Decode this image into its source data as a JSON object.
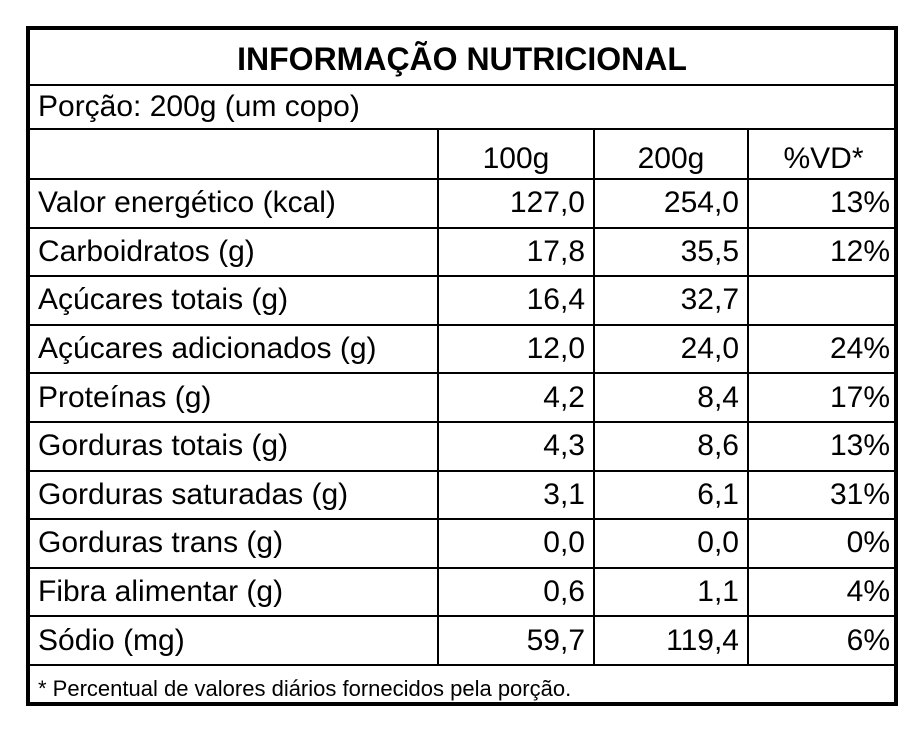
{
  "title": "INFORMAÇÃO NUTRICIONAL",
  "portion": "Porção: 200g (um copo)",
  "columns": [
    "",
    "100g",
    "200g",
    "%VD*"
  ],
  "rows": [
    {
      "name": "Valor energético (kcal)",
      "v100": "127,0",
      "v200": "254,0",
      "vd": "13%"
    },
    {
      "name": "Carboidratos  (g)",
      "v100": "17,8",
      "v200": "35,5",
      "vd": "12%"
    },
    {
      "name": "Açúcares totais  (g)",
      "v100": "16,4",
      "v200": "32,7",
      "vd": ""
    },
    {
      "name": "Açúcares adicionados  (g)",
      "v100": "12,0",
      "v200": "24,0",
      "vd": "24%"
    },
    {
      "name": "Proteínas   (g)",
      "v100": "4,2",
      "v200": "8,4",
      "vd": "17%"
    },
    {
      "name": "Gorduras totais (g)",
      "v100": "4,3",
      "v200": "8,6",
      "vd": "13%"
    },
    {
      "name": "Gorduras saturadas (g)",
      "v100": "3,1",
      "v200": "6,1",
      "vd": "31%"
    },
    {
      "name": "Gorduras trans (g)",
      "v100": "0,0",
      "v200": "0,0",
      "vd": "0%"
    },
    {
      "name": "Fibra  alimentar (g)",
      "v100": "0,6",
      "v200": "1,1",
      "vd": "4%"
    },
    {
      "name": "Sódio (mg)",
      "v100": "59,7",
      "v200": "119,4",
      "vd": "6%"
    }
  ],
  "footnote": "* Percentual de valores diários fornecidos pela porção."
}
